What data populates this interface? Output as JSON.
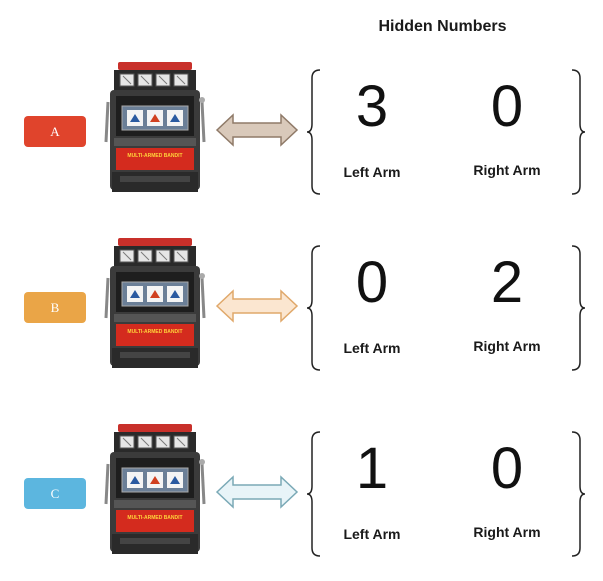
{
  "title": "Hidden Numbers",
  "machine_sign": "MULTI-ARMED BANDIT",
  "rows": [
    {
      "label": "A",
      "color": "#e0442c",
      "arrow_fill": "#d9c9ba",
      "arrow_stroke": "#8f7a68",
      "left_value": "3",
      "right_value": "0",
      "left_label": "Left Arm",
      "right_label": "Right Arm"
    },
    {
      "label": "B",
      "color": "#eaa547",
      "arrow_fill": "#fbe6d0",
      "arrow_stroke": "#e0a86a",
      "left_value": "0",
      "right_value": "2",
      "left_label": "Left Arm",
      "right_label": "Right Arm"
    },
    {
      "label": "C",
      "color": "#5cb6df",
      "arrow_fill": "#e8f4f8",
      "arrow_stroke": "#7aa9b6",
      "left_value": "1",
      "right_value": "0",
      "left_label": "Left Arm",
      "right_label": "Right Arm"
    }
  ]
}
